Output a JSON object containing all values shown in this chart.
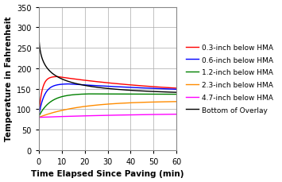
{
  "title": "",
  "xlabel": "Time Elapsed Since Paving (min)",
  "ylabel": "Temperature in Fahrenheit",
  "xlim": [
    0,
    60
  ],
  "ylim": [
    0,
    350
  ],
  "yticks": [
    0,
    50,
    100,
    150,
    200,
    250,
    300,
    350
  ],
  "xticks": [
    0,
    10,
    20,
    30,
    40,
    50,
    60
  ],
  "series": [
    {
      "label": "0.3-inch below HMA",
      "color": "#FF0000"
    },
    {
      "label": "0.6-inch below HMA",
      "color": "#0000FF"
    },
    {
      "label": "1.2-inch below HMA",
      "color": "#008000"
    },
    {
      "label": "2.3-inch below HMA",
      "color": "#FF8C00"
    },
    {
      "label": "4.7-inch below HMA",
      "color": "#FF00FF"
    },
    {
      "label": "Bottom of Overlay",
      "color": "#000000"
    }
  ],
  "background_color": "#FFFFFF",
  "grid_color": "#AAAAAA",
  "legend_fontsize": 6.5,
  "axis_fontsize": 7.5,
  "tick_fontsize": 7,
  "figwidth": 3.55,
  "figheight": 2.3,
  "legend_labelspacing": 0.75,
  "legend_handlelength": 1.8
}
